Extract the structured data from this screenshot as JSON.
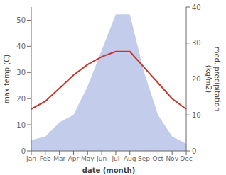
{
  "chart_data": {
    "type": "line",
    "categories": [
      "Jan",
      "Feb",
      "Mar",
      "Apr",
      "May",
      "Jun",
      "Jul",
      "Aug",
      "Sep",
      "Oct",
      "Nov",
      "Dec"
    ],
    "series": [
      {
        "type": "area",
        "color": "#b8c4e8",
        "axis": "y2",
        "values": [
          3,
          4,
          8,
          10,
          18,
          28,
          38,
          38,
          22,
          10,
          4,
          2
        ]
      },
      {
        "type": "line",
        "color": "#c0392b",
        "values": [
          16,
          19,
          24,
          29,
          33,
          36,
          38,
          38,
          32,
          26,
          20,
          16
        ]
      }
    ],
    "xlabel": "date (month)",
    "ylabel": "max temp (C)",
    "y2label": "med. precipitation\n(kg/m2)",
    "ylim": [
      0,
      55
    ],
    "yticks": [
      0,
      10,
      20,
      30,
      40,
      50
    ],
    "y2lim": [
      0,
      40
    ],
    "y2ticks": [
      0,
      10,
      20,
      30,
      40
    ],
    "grid": false
  }
}
